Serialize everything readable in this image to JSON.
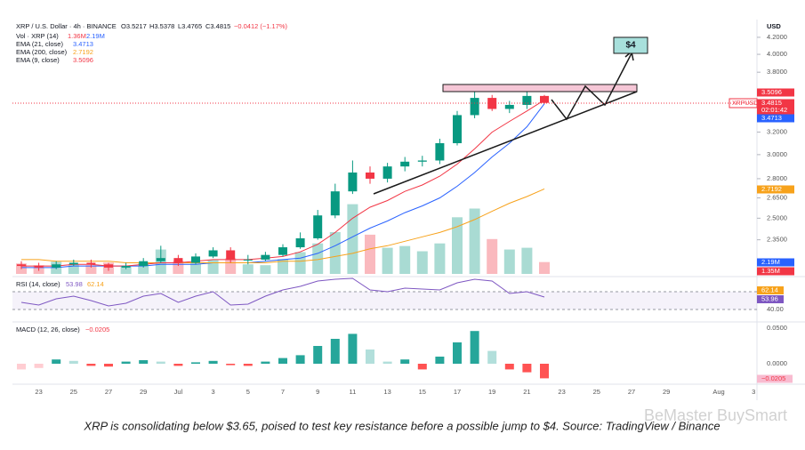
{
  "chart_data": {
    "type": "candlestick",
    "header": {
      "symbol": "XRP / U.S. Dollar · 4h · BINANCE",
      "open": "O3.5217",
      "high": "H3.5378",
      "low": "L3.4765",
      "close": "C3.4815",
      "change": "−0.0412 (−1.17%)"
    },
    "currency": "USD",
    "log": true,
    "ylim": [
      2.12,
      4.33
    ],
    "yticks": [
      {
        "value": 4.2,
        "label": "4.2000"
      },
      {
        "value": 4.0,
        "label": "4.0000"
      },
      {
        "value": 3.8,
        "label": "3.8000"
      },
      {
        "value": 3.2,
        "label": "3.2000"
      },
      {
        "value": 3.0,
        "label": "3.0000"
      },
      {
        "value": 2.8,
        "label": "2.8000"
      },
      {
        "value": 2.65,
        "label": "2.6500"
      },
      {
        "value": 2.5,
        "label": "2.5000"
      },
      {
        "value": 2.35,
        "label": "2.3500"
      }
    ],
    "xticks": [
      "23",
      "25",
      "27",
      "29",
      "Jul",
      "3",
      "5",
      "7",
      "9",
      "11",
      "13",
      "15",
      "17",
      "19",
      "21",
      "23",
      "25",
      "27",
      "29",
      "Aug",
      "3"
    ],
    "up_color": "#089981",
    "down_color": "#f23645",
    "open": [
      2.19,
      2.18,
      2.17,
      2.19,
      2.2,
      2.19,
      2.17,
      2.18,
      2.21,
      2.23,
      2.2,
      2.24,
      2.28,
      2.22,
      2.22,
      2.25,
      2.3,
      2.36,
      2.52,
      2.7,
      2.85,
      2.8,
      2.9,
      2.94,
      2.95,
      3.1,
      3.36,
      3.53,
      3.42,
      3.46,
      3.55
    ],
    "high": [
      2.21,
      2.2,
      2.21,
      2.22,
      2.22,
      2.2,
      2.2,
      2.23,
      2.31,
      2.25,
      2.26,
      2.3,
      2.3,
      2.25,
      2.27,
      2.32,
      2.4,
      2.56,
      2.76,
      2.95,
      2.9,
      2.93,
      2.98,
      2.99,
      3.14,
      3.4,
      3.65,
      3.56,
      3.5,
      3.6,
      3.56
    ],
    "low": [
      2.16,
      2.15,
      2.16,
      2.18,
      2.17,
      2.15,
      2.16,
      2.17,
      2.2,
      2.18,
      2.19,
      2.23,
      2.2,
      2.19,
      2.21,
      2.24,
      2.29,
      2.35,
      2.5,
      2.68,
      2.76,
      2.77,
      2.86,
      2.9,
      2.92,
      3.08,
      3.33,
      3.4,
      3.38,
      3.42,
      3.47
    ],
    "close": [
      2.18,
      2.17,
      2.19,
      2.2,
      2.19,
      2.17,
      2.18,
      2.21,
      2.23,
      2.2,
      2.24,
      2.28,
      2.22,
      2.22,
      2.25,
      2.3,
      2.36,
      2.52,
      2.7,
      2.85,
      2.8,
      2.9,
      2.94,
      2.95,
      3.1,
      3.36,
      3.53,
      3.42,
      3.46,
      3.55,
      3.48
    ],
    "series": [
      {
        "name": "EMA (21, close)",
        "last_label": "3.4713",
        "color": "#2962ff",
        "values": [
          2.17,
          2.17,
          2.17,
          2.18,
          2.18,
          2.18,
          2.18,
          2.18,
          2.19,
          2.19,
          2.19,
          2.2,
          2.2,
          2.2,
          2.21,
          2.22,
          2.23,
          2.26,
          2.31,
          2.37,
          2.43,
          2.48,
          2.54,
          2.59,
          2.65,
          2.74,
          2.85,
          2.98,
          3.1,
          3.25,
          3.4713
        ]
      },
      {
        "name": "EMA (200, close)",
        "last_label": "2.7192",
        "color": "#f7a21b",
        "values": [
          2.22,
          2.22,
          2.21,
          2.21,
          2.21,
          2.21,
          2.2,
          2.2,
          2.2,
          2.2,
          2.2,
          2.2,
          2.2,
          2.2,
          2.2,
          2.21,
          2.21,
          2.22,
          2.24,
          2.26,
          2.29,
          2.31,
          2.34,
          2.37,
          2.4,
          2.44,
          2.49,
          2.55,
          2.61,
          2.66,
          2.7192
        ]
      },
      {
        "name": "EMA (9, close)",
        "last_label": "3.5096",
        "color": "#f23645",
        "values": [
          2.18,
          2.18,
          2.18,
          2.19,
          2.19,
          2.18,
          2.18,
          2.19,
          2.2,
          2.2,
          2.21,
          2.22,
          2.22,
          2.22,
          2.23,
          2.24,
          2.27,
          2.32,
          2.4,
          2.5,
          2.58,
          2.63,
          2.7,
          2.75,
          2.82,
          2.92,
          3.05,
          3.2,
          3.3,
          3.4,
          3.5096
        ]
      }
    ],
    "volume": {
      "name": "Vol · XRP (14)",
      "labels": [
        "1.36M",
        "2.19M"
      ],
      "ylim": [
        0,
        10
      ],
      "values": [
        1.2,
        1.0,
        1.4,
        1.1,
        1.0,
        1.3,
        0.9,
        1.2,
        2.8,
        1.5,
        1.2,
        1.6,
        1.8,
        1.1,
        1.0,
        1.7,
        2.5,
        3.5,
        4.8,
        8.0,
        4.5,
        3.0,
        3.2,
        2.6,
        3.5,
        6.5,
        7.5,
        4.0,
        2.8,
        3.0,
        1.36
      ]
    },
    "price_badges": [
      {
        "text": "3.5096",
        "color": "#f23645"
      },
      {
        "text": "3.4815",
        "color": "#f23645"
      },
      {
        "text": "02:01:42",
        "color": "#f23645"
      },
      {
        "text": "3.4713",
        "color": "#2962ff"
      },
      {
        "text": "2.7192",
        "color": "#f7a21b"
      },
      {
        "text": "2.19M",
        "color": "#2962ff"
      },
      {
        "text": "1.35M",
        "color": "#f23645"
      }
    ],
    "symbol_tag": "XRPUSD",
    "rsi": {
      "name": "RSI (14, close)",
      "labels": [
        "53.98",
        "62.14"
      ],
      "color": "#7e57c2",
      "ylim": [
        28,
        74
      ],
      "band": [
        40,
        60
      ],
      "yticks": [
        {
          "value": 40,
          "label": "40.00"
        }
      ],
      "badges": [
        {
          "text": "62.14",
          "color": "#f7a21b"
        },
        {
          "text": "53.96",
          "color": "#7e57c2"
        }
      ],
      "values": [
        48,
        45,
        52,
        55,
        50,
        44,
        47,
        55,
        58,
        48,
        55,
        60,
        45,
        46,
        55,
        62,
        66,
        72,
        74,
        75,
        62,
        60,
        64,
        63,
        62,
        70,
        74,
        72,
        58,
        60,
        53.96
      ]
    },
    "macd": {
      "name": "MACD (12, 26, close)",
      "label": "−0.0205",
      "ylim": [
        -0.05125,
        0.0575
      ],
      "yticks": [
        {
          "value": 0.05,
          "label": "0.0500"
        },
        {
          "value": 0,
          "label": "0.0000"
        }
      ],
      "badge": "−0.0205",
      "values": [
        -0.008,
        -0.006,
        0.006,
        0.004,
        -0.003,
        -0.004,
        0.003,
        0.005,
        0.003,
        -0.003,
        0.002,
        0.004,
        -0.002,
        -0.003,
        0.003,
        0.008,
        0.012,
        0.025,
        0.035,
        0.042,
        0.02,
        0.003,
        0.006,
        -0.008,
        0.01,
        0.03,
        0.046,
        0.018,
        -0.008,
        -0.012,
        -0.0205
      ]
    },
    "annotation": "$4",
    "caption": "XRP is consolidating below $3.65, poised to test key resistance before a possible jump to $4. Source: TradingView / Binance",
    "watermark": "BeMaster BuySmart"
  }
}
